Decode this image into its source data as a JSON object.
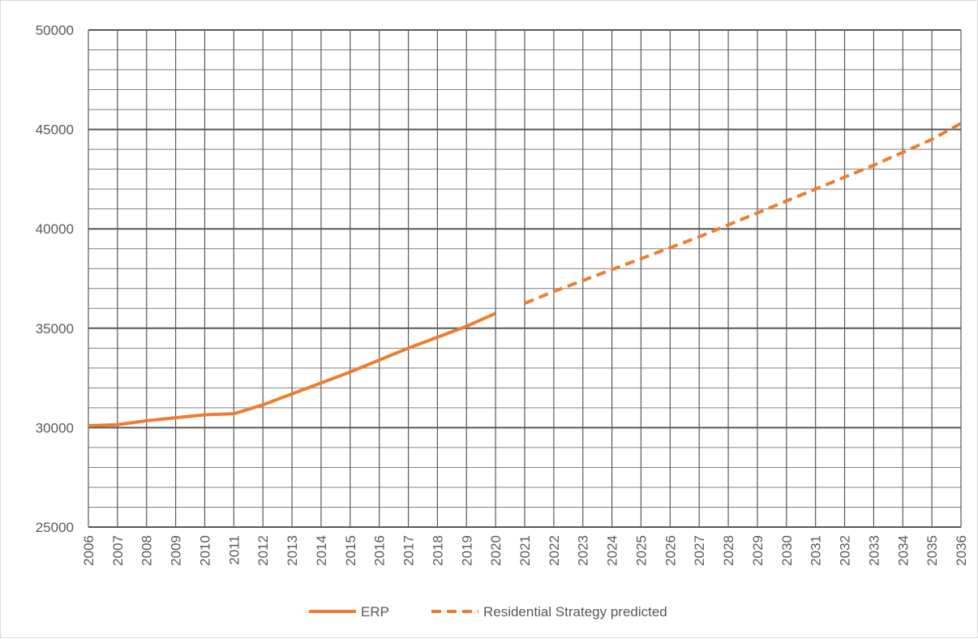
{
  "chart_data": {
    "type": "line",
    "title": "",
    "xlabel": "",
    "ylabel": "",
    "x": [
      2006,
      2007,
      2008,
      2009,
      2010,
      2011,
      2012,
      2013,
      2014,
      2015,
      2016,
      2017,
      2018,
      2019,
      2020,
      2021,
      2022,
      2023,
      2024,
      2025,
      2026,
      2027,
      2028,
      2029,
      2030,
      2031,
      2032,
      2033,
      2034,
      2035,
      2036
    ],
    "ylim": [
      25000,
      50000
    ],
    "y_ticks": [
      25000,
      30000,
      35000,
      40000,
      45000,
      50000
    ],
    "y_tick_labels": [
      "25000",
      "30000",
      "35000",
      "40000",
      "45000",
      "50000"
    ],
    "x_tick_labels": [
      "2006",
      "2007",
      "2008",
      "2009",
      "2010",
      "2011",
      "2012",
      "2013",
      "2014",
      "2015",
      "2016",
      "2017",
      "2018",
      "2019",
      "2020",
      "2021",
      "2022",
      "2023",
      "2024",
      "2025",
      "2026",
      "2027",
      "2028",
      "2029",
      "2030",
      "2031",
      "2032",
      "2033",
      "2034",
      "2035",
      "2036"
    ],
    "grid": true,
    "minor_grid_step": 1000,
    "legend_position": "bottom",
    "series": [
      {
        "name": "ERP",
        "style": "solid",
        "color": "#ED7D31",
        "x": [
          2006,
          2007,
          2008,
          2009,
          2010,
          2011,
          2012,
          2013,
          2014,
          2015,
          2016,
          2017,
          2018,
          2019,
          2020
        ],
        "values": [
          30100,
          30150,
          30350,
          30500,
          30650,
          30700,
          31150,
          31700,
          32250,
          32800,
          33400,
          34000,
          34550,
          35100,
          35750
        ]
      },
      {
        "name": "Residential Strategy predicted",
        "style": "dashed",
        "color": "#ED7D31",
        "x": [
          2021,
          2022,
          2023,
          2024,
          2025,
          2026,
          2027,
          2028,
          2029,
          2030,
          2031,
          2032,
          2033,
          2034,
          2035,
          2036
        ],
        "values": [
          36250,
          36850,
          37400,
          37950,
          38500,
          39050,
          39600,
          40200,
          40800,
          41400,
          42000,
          42600,
          43200,
          43850,
          44500,
          45300
        ]
      }
    ]
  }
}
